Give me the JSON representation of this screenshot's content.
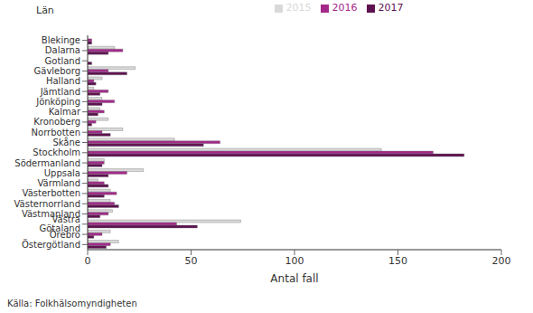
{
  "chart_data": {
    "type": "bar",
    "orientation": "horizontal",
    "y_label": "Län",
    "x_label": "Antal fall",
    "annotation": "Källa: Folkhälsomyndigheten",
    "categories": [
      "Blekinge",
      "Dalarna",
      "Gotland",
      "Gävleborg",
      "Halland",
      "Jämtland",
      "Jönköping",
      "Kalmar",
      "Kronoberg",
      "Norrbotten",
      "Skåne",
      "Stockholm",
      "Södermanland",
      "Uppsala",
      "Värmland",
      "Västerbotten",
      "Västernorrland",
      "Västmanland",
      "Västra Götaland",
      "Örebro",
      "Östergötland"
    ],
    "series": [
      {
        "name": "2015",
        "color": "#d9d9d9",
        "values": [
          0,
          13,
          0,
          23,
          7,
          3,
          7,
          6,
          10,
          17,
          42,
          142,
          8,
          27,
          5,
          11,
          11,
          12,
          74,
          11,
          15
        ]
      },
      {
        "name": "2016",
        "color": "#a3288a",
        "values": [
          2,
          17,
          0,
          10,
          3,
          10,
          13,
          8,
          4,
          7,
          64,
          167,
          8,
          19,
          8,
          14,
          13,
          10,
          43,
          7,
          11
        ]
      },
      {
        "name": "2017",
        "color": "#5e1150",
        "values": [
          2,
          10,
          2,
          19,
          4,
          6,
          7,
          5,
          2,
          11,
          56,
          182,
          7,
          10,
          10,
          8,
          15,
          6,
          53,
          3,
          9
        ]
      }
    ],
    "xlim": [
      0,
      200
    ],
    "xticks": [
      0,
      50,
      100,
      150,
      200
    ],
    "grid": false,
    "legend": "top"
  }
}
